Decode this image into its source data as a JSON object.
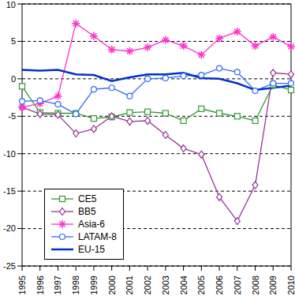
{
  "chart_data": {
    "type": "line",
    "categories": [
      "1995",
      "1996",
      "1997",
      "1998",
      "1999",
      "2000",
      "2001",
      "2002",
      "2003",
      "2004",
      "2005",
      "2006",
      "2007",
      "2008",
      "2009",
      "2010"
    ],
    "series": [
      {
        "name": "CE5",
        "color": "#339933",
        "marker": "square",
        "values": [
          -1,
          -4.5,
          -4.6,
          -4.6,
          -5.3,
          -5.1,
          -4.5,
          -4.4,
          -4.6,
          -5.6,
          -4,
          -4.6,
          -5,
          -5.6,
          -0.8,
          -1.5
        ]
      },
      {
        "name": "BB5",
        "color": "#993399",
        "marker": "diamond",
        "values": [
          -3.8,
          -4.7,
          -4.8,
          -7.3,
          -6.7,
          -5,
          -5.7,
          -5.6,
          -7.5,
          -9.3,
          -10.1,
          -15.8,
          -19,
          -14.2,
          0.8,
          0.6
        ]
      },
      {
        "name": "Asia-6",
        "color": "#ff33cc",
        "marker": "star",
        "values": [
          -3.8,
          -3.3,
          -2.3,
          7.4,
          5.7,
          3.9,
          3.7,
          4.2,
          5.2,
          4.4,
          3.2,
          5.4,
          6.3,
          4.4,
          5.6,
          4.3
        ]
      },
      {
        "name": "LATAM-8",
        "color": "#3366ff",
        "marker": "circle",
        "values": [
          -3,
          -2.9,
          -3.4,
          -4.7,
          -1.4,
          -1.2,
          -2.3,
          0,
          0.1,
          0.4,
          0.5,
          1.4,
          0.9,
          -1.6,
          -0.6,
          -0.6
        ]
      },
      {
        "name": "EU-15",
        "color": "#0033cc",
        "marker": "none",
        "values": [
          1.2,
          1.1,
          1.2,
          0.6,
          0.5,
          -0.3,
          0.2,
          0.6,
          0.6,
          0.8,
          0.1,
          0,
          -0.6,
          -1.5,
          -1.2,
          -0.9
        ]
      }
    ],
    "ylim": [
      -25,
      10
    ],
    "yticks": [
      -25,
      -20,
      -15,
      -10,
      -5,
      0,
      5,
      10
    ],
    "grid": true,
    "legend": "lower left"
  }
}
